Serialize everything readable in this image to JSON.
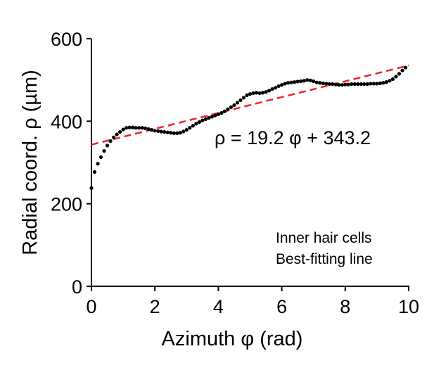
{
  "chart_data": {
    "type": "scatter",
    "xlabel": "Azimuth φ (rad)",
    "ylabel": "Radial coord. ρ  (µm)",
    "xlim": [
      0,
      10
    ],
    "ylim": [
      0,
      600
    ],
    "xticks": [
      "0",
      "2",
      "4",
      "6",
      "8",
      "10"
    ],
    "yticks": [
      "0",
      "200",
      "400",
      "600"
    ],
    "annotation": "ρ = 19.2 φ + 343.2",
    "legend": [
      "Inner hair cells",
      "Best-fitting line"
    ],
    "legend_position": "bottom-right",
    "grid": false,
    "colors": {
      "points": "#000000",
      "fit_line": "#e8262a"
    },
    "fit_line": {
      "slope": 19.2,
      "intercept": 343.2
    },
    "series": [
      {
        "x": [
          0.0,
          0.1,
          0.2,
          0.3,
          0.4,
          0.5,
          0.6,
          0.7,
          0.8,
          0.9,
          1.0,
          1.1,
          1.2,
          1.3,
          1.4,
          1.5,
          1.6,
          1.7,
          1.8,
          1.9,
          2.0,
          2.1,
          2.2,
          2.3,
          2.4,
          2.5,
          2.6,
          2.7,
          2.8,
          2.9,
          3.0,
          3.1,
          3.2,
          3.3,
          3.4,
          3.5,
          3.6,
          3.7,
          3.8,
          3.9,
          4.0,
          4.1,
          4.2,
          4.3,
          4.4,
          4.5,
          4.6,
          4.7,
          4.8,
          4.9,
          5.0,
          5.1,
          5.2,
          5.3,
          5.4,
          5.5,
          5.6,
          5.7,
          5.8,
          5.9,
          6.0,
          6.1,
          6.2,
          6.3,
          6.4,
          6.5,
          6.6,
          6.7,
          6.8,
          6.9,
          7.0,
          7.1,
          7.2,
          7.3,
          7.4,
          7.5,
          7.6,
          7.7,
          7.8,
          7.9,
          8.0,
          8.1,
          8.2,
          8.3,
          8.4,
          8.5,
          8.6,
          8.7,
          8.8,
          8.9,
          9.0,
          9.1,
          9.2,
          9.3,
          9.4,
          9.5,
          9.6,
          9.7,
          9.8,
          9.9
        ],
        "values": [
          238,
          277,
          297,
          313,
          328,
          341,
          352,
          361,
          368,
          374,
          380,
          384,
          385,
          385,
          384,
          384,
          384,
          383,
          381,
          379,
          377,
          376,
          375,
          374,
          373,
          372,
          371,
          371,
          372,
          375,
          379,
          384,
          389,
          394,
          398,
          402,
          405,
          408,
          411,
          414,
          417,
          420,
          424,
          429,
          434,
          439,
          445,
          451,
          457,
          463,
          466,
          468,
          469,
          468,
          469,
          471,
          474,
          478,
          481,
          485,
          488,
          491,
          493,
          494,
          495,
          496,
          497,
          498,
          500,
          499,
          497,
          494,
          493,
          492,
          491,
          490,
          490,
          489,
          488,
          488,
          489,
          489,
          490,
          490,
          490,
          490,
          490,
          490,
          491,
          491,
          491,
          492,
          493,
          495,
          498,
          502,
          508,
          515,
          523,
          530
        ]
      }
    ]
  }
}
